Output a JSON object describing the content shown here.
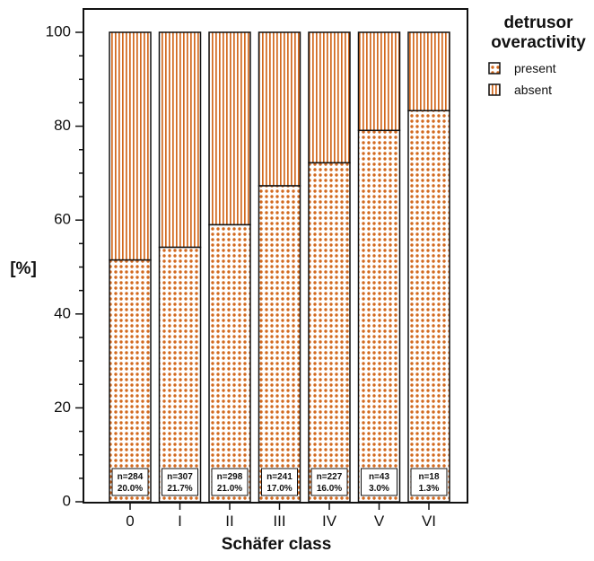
{
  "chart_data": {
    "type": "bar",
    "stacked": true,
    "percent": true,
    "categories": [
      "0",
      "I",
      "II",
      "III",
      "IV",
      "V",
      "VI"
    ],
    "series": [
      {
        "name": "present",
        "values": [
          51.5,
          54.2,
          59.0,
          67.3,
          72.2,
          79.1,
          83.3
        ],
        "pattern": "dots",
        "color": "#d2691e"
      },
      {
        "name": "absent",
        "values": [
          48.5,
          45.8,
          41.0,
          32.7,
          27.8,
          20.9,
          16.7
        ],
        "pattern": "vertical-lines",
        "color": "#d2691e"
      }
    ],
    "annotations": [
      {
        "n": "n=284",
        "pct": "20.0%"
      },
      {
        "n": "n=307",
        "pct": "21.7%"
      },
      {
        "n": "n=298",
        "pct": "21.0%"
      },
      {
        "n": "n=241",
        "pct": "17.0%"
      },
      {
        "n": "n=227",
        "pct": "16.0%"
      },
      {
        "n": "n=43",
        "pct": "3.0%"
      },
      {
        "n": "n=18",
        "pct": "1.3%"
      }
    ],
    "xlabel": "Schäfer class",
    "ylabel": "[%]",
    "ylim": [
      0,
      100
    ],
    "yticks": [
      0,
      20,
      40,
      60,
      80,
      100
    ],
    "legend": {
      "title_lines": [
        "detrusor",
        "overactivity"
      ],
      "placement": "top-right"
    },
    "grid": false
  },
  "colors": {
    "pattern": "#d2691e",
    "outline": "#111111",
    "background": "#ffffff"
  }
}
